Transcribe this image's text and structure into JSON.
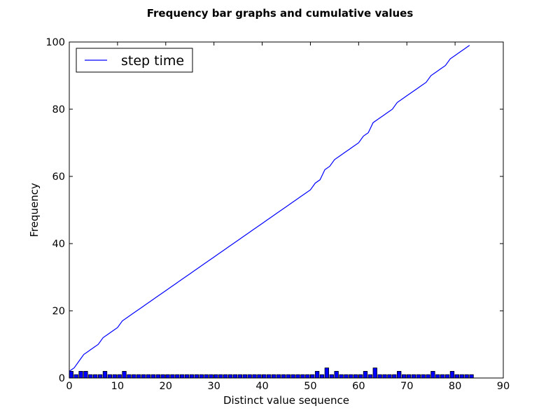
{
  "chart_data": {
    "type": "bar",
    "title": "Frequency bar graphs and cumulative values",
    "xlabel": "Distinct value sequence",
    "ylabel": "Frequency",
    "xlim": [
      0,
      90
    ],
    "ylim": [
      0,
      100
    ],
    "xticks": [
      0,
      10,
      20,
      30,
      40,
      50,
      60,
      70,
      80,
      90
    ],
    "yticks": [
      0,
      20,
      40,
      60,
      80,
      100
    ],
    "grid": false,
    "legend_position": "top-left",
    "bar_color": "#0000ff",
    "line_color": "#0000ff",
    "bars": {
      "x": [
        0,
        1,
        2,
        3,
        4,
        5,
        6,
        7,
        8,
        9,
        10,
        11,
        12,
        13,
        14,
        15,
        16,
        17,
        18,
        19,
        20,
        21,
        22,
        23,
        24,
        25,
        26,
        27,
        28,
        29,
        30,
        31,
        32,
        33,
        34,
        35,
        36,
        37,
        38,
        39,
        40,
        41,
        42,
        43,
        44,
        45,
        46,
        47,
        48,
        49,
        50,
        51,
        52,
        53,
        54,
        55,
        56,
        57,
        58,
        59,
        60,
        61,
        62,
        63,
        64,
        65,
        66,
        67,
        68,
        69,
        70,
        71,
        72,
        73,
        74,
        75,
        76,
        77,
        78,
        79,
        80,
        81,
        82,
        83
      ],
      "values": [
        2,
        1,
        2,
        2,
        1,
        1,
        1,
        2,
        1,
        1,
        1,
        2,
        1,
        1,
        1,
        1,
        1,
        1,
        1,
        1,
        1,
        1,
        1,
        1,
        1,
        1,
        1,
        1,
        1,
        1,
        1,
        1,
        1,
        1,
        1,
        1,
        1,
        1,
        1,
        1,
        1,
        1,
        1,
        1,
        1,
        1,
        1,
        1,
        1,
        1,
        1,
        2,
        1,
        3,
        1,
        2,
        1,
        1,
        1,
        1,
        1,
        2,
        1,
        3,
        1,
        1,
        1,
        1,
        2,
        1,
        1,
        1,
        1,
        1,
        1,
        2,
        1,
        1,
        1,
        2,
        1,
        1,
        1,
        1
      ]
    },
    "series": [
      {
        "name": "step time",
        "type": "line",
        "x": [
          0,
          1,
          2,
          3,
          4,
          5,
          6,
          7,
          8,
          9,
          10,
          11,
          12,
          13,
          14,
          15,
          16,
          17,
          18,
          19,
          20,
          21,
          22,
          23,
          24,
          25,
          26,
          27,
          28,
          29,
          30,
          31,
          32,
          33,
          34,
          35,
          36,
          37,
          38,
          39,
          40,
          41,
          42,
          43,
          44,
          45,
          46,
          47,
          48,
          49,
          50,
          51,
          52,
          53,
          54,
          55,
          56,
          57,
          58,
          59,
          60,
          61,
          62,
          63,
          64,
          65,
          66,
          67,
          68,
          69,
          70,
          71,
          72,
          73,
          74,
          75,
          76,
          77,
          78,
          79,
          80,
          81,
          82,
          83
        ],
        "values": [
          2,
          3,
          5,
          7,
          8,
          9,
          10,
          12,
          13,
          14,
          15,
          17,
          18,
          19,
          20,
          21,
          22,
          23,
          24,
          25,
          26,
          27,
          28,
          29,
          30,
          31,
          32,
          33,
          34,
          35,
          36,
          37,
          38,
          39,
          40,
          41,
          42,
          43,
          44,
          45,
          46,
          47,
          48,
          49,
          50,
          51,
          52,
          53,
          54,
          55,
          56,
          58,
          59,
          62,
          63,
          65,
          66,
          67,
          68,
          69,
          70,
          72,
          73,
          76,
          77,
          78,
          79,
          80,
          82,
          83,
          84,
          85,
          86,
          87,
          88,
          90,
          91,
          92,
          93,
          95,
          96,
          97,
          98,
          99
        ]
      }
    ]
  }
}
